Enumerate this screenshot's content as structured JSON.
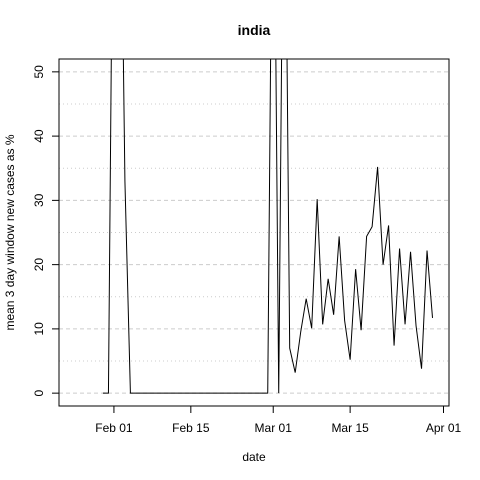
{
  "chart_data": {
    "type": "line",
    "title": "india",
    "xlabel": "date",
    "ylabel": "mean  3  day window new cases as %",
    "x_ticks": [
      {
        "date": "2020-02-01",
        "label": "Feb 01"
      },
      {
        "date": "2020-02-15",
        "label": "Feb 15"
      },
      {
        "date": "2020-03-01",
        "label": "Mar 01"
      },
      {
        "date": "2020-03-15",
        "label": "Mar 15"
      },
      {
        "date": "2020-04-01",
        "label": "Apr 01"
      }
    ],
    "y_ticks": [
      0,
      10,
      20,
      30,
      40,
      50
    ],
    "xlim": [
      "2020-01-22",
      "2020-04-02"
    ],
    "ylim": [
      -2,
      52
    ],
    "grid": {
      "major_y": [
        0,
        10,
        20,
        30,
        40,
        50
      ],
      "minor_y": [
        5,
        15,
        25,
        35,
        45
      ]
    },
    "line_color": "#000000",
    "grid_color": "#cccccc",
    "series": [
      {
        "name": "",
        "points": [
          {
            "x": "2020-01-30",
            "y": 0
          },
          {
            "x": "2020-01-31",
            "y": 0
          },
          {
            "x": "2020-02-01",
            "y": 100
          },
          {
            "x": "2020-02-02",
            "y": 100
          },
          {
            "x": "2020-02-03",
            "y": 33
          },
          {
            "x": "2020-02-04",
            "y": 0
          },
          {
            "x": "2020-02-05",
            "y": 0
          },
          {
            "x": "2020-02-29",
            "y": 0
          },
          {
            "x": "2020-03-01",
            "y": 100
          },
          {
            "x": "2020-03-02",
            "y": 0
          },
          {
            "x": "2020-03-03",
            "y": 100
          },
          {
            "x": "2020-03-04",
            "y": 7
          },
          {
            "x": "2020-03-05",
            "y": 3.2
          },
          {
            "x": "2020-03-06",
            "y": 9.5
          },
          {
            "x": "2020-03-07",
            "y": 14.7
          },
          {
            "x": "2020-03-08",
            "y": 10.1
          },
          {
            "x": "2020-03-09",
            "y": 30.2
          },
          {
            "x": "2020-03-10",
            "y": 10.7
          },
          {
            "x": "2020-03-11",
            "y": 17.8
          },
          {
            "x": "2020-03-12",
            "y": 12.2
          },
          {
            "x": "2020-03-13",
            "y": 24.4
          },
          {
            "x": "2020-03-14",
            "y": 11.3
          },
          {
            "x": "2020-03-15",
            "y": 5.2
          },
          {
            "x": "2020-03-16",
            "y": 19.3
          },
          {
            "x": "2020-03-17",
            "y": 9.8
          },
          {
            "x": "2020-03-18",
            "y": 24.4
          },
          {
            "x": "2020-03-19",
            "y": 25.9
          },
          {
            "x": "2020-03-20",
            "y": 35.2
          },
          {
            "x": "2020-03-21",
            "y": 20
          },
          {
            "x": "2020-03-22",
            "y": 26.1
          },
          {
            "x": "2020-03-23",
            "y": 7.4
          },
          {
            "x": "2020-03-24",
            "y": 22.5
          },
          {
            "x": "2020-03-25",
            "y": 10.7
          },
          {
            "x": "2020-03-26",
            "y": 22
          },
          {
            "x": "2020-03-27",
            "y": 10.5
          },
          {
            "x": "2020-03-28",
            "y": 3.8
          },
          {
            "x": "2020-03-29",
            "y": 22.2
          },
          {
            "x": "2020-03-30",
            "y": 11.7
          }
        ]
      }
    ]
  }
}
